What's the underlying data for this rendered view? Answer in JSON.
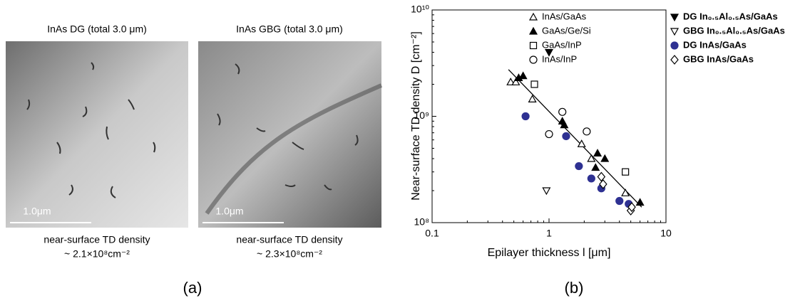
{
  "panel_a": {
    "images": [
      {
        "title": "InAs DG (total 3.0 μm)",
        "scale_bar": "1.0μm",
        "caption": "near-surface TD density",
        "density": "~ 2.1×10⁸cm⁻²"
      },
      {
        "title": "InAs GBG (total 3.0 μm)",
        "scale_bar": "1.0μm",
        "caption": "near-surface TD density",
        "density": "~ 2.3×10⁸cm⁻²"
      }
    ],
    "label": "(a)"
  },
  "panel_b_label": "(b)",
  "chart_data": {
    "type": "scatter",
    "xlabel": "Epilayer thickness l [μm]",
    "ylabel": "Near-surface TD density D [cm⁻²]",
    "xscale": "log",
    "yscale": "log",
    "xlim": [
      0.1,
      10
    ],
    "ylim": [
      100000000,
      10000000000
    ],
    "xticks": [
      0.1,
      1,
      10
    ],
    "yticks": [
      {
        "value": 100000000,
        "label": "10⁸"
      },
      {
        "value": 1000000000,
        "label": "10⁹"
      },
      {
        "value": 10000000000,
        "label": "10¹⁰"
      }
    ],
    "fit": {
      "x": [
        0.45,
        6.2
      ],
      "y": [
        2750000000,
        140000000
      ],
      "color": "#000000"
    },
    "series": [
      {
        "name": "InAs/GaAs",
        "color": "#000000",
        "marker": "triangle-up-open",
        "x": [
          0.47,
          0.52,
          0.72,
          1.9,
          2.3,
          4.5
        ],
        "y": [
          2100000000,
          2100000000,
          1450000000,
          550000000,
          400000000,
          190000000
        ]
      },
      {
        "name": "GaAs/Ge/Si",
        "color": "#000000",
        "marker": "triangle-up-filled",
        "x": [
          0.55,
          0.6,
          1.3,
          1.35,
          2.5,
          2.6,
          3.0,
          6.0
        ],
        "y": [
          2300000000,
          2400000000,
          900000000,
          830000000,
          330000000,
          450000000,
          400000000,
          155000000
        ]
      },
      {
        "name": "GaAs/InP",
        "color": "#000000",
        "marker": "square-open",
        "x": [
          0.75,
          4.5
        ],
        "y": [
          2000000000,
          300000000
        ]
      },
      {
        "name": "InAs/InP",
        "color": "#000000",
        "marker": "circle-open",
        "x": [
          1.0,
          1.3,
          2.1
        ],
        "y": [
          680000000,
          1100000000,
          720000000
        ]
      },
      {
        "name": "DG In₀.₅Al₀.₅As/GaAs",
        "color": "#000000",
        "marker": "triangle-down-filled",
        "x": [
          1.0
        ],
        "y": [
          4000000000
        ]
      },
      {
        "name": "GBG In₀.₅Al₀.₅As/GaAs",
        "color": "#000000",
        "marker": "triangle-down-open",
        "x": [
          0.95
        ],
        "y": [
          200000000
        ]
      },
      {
        "name": "DG InAs/GaAs",
        "color": "#2e3192",
        "marker": "circle-filled",
        "x": [
          0.63,
          1.4,
          1.8,
          2.3,
          2.8,
          4.0,
          4.8
        ],
        "y": [
          1000000000,
          650000000,
          340000000,
          260000000,
          210000000,
          160000000,
          150000000
        ]
      },
      {
        "name": "GBG InAs/GaAs",
        "color": "#000000",
        "marker": "diamond-open",
        "x": [
          2.8,
          2.9,
          5.0,
          5.1
        ],
        "y": [
          270000000,
          230000000,
          130000000,
          140000000
        ]
      }
    ]
  }
}
